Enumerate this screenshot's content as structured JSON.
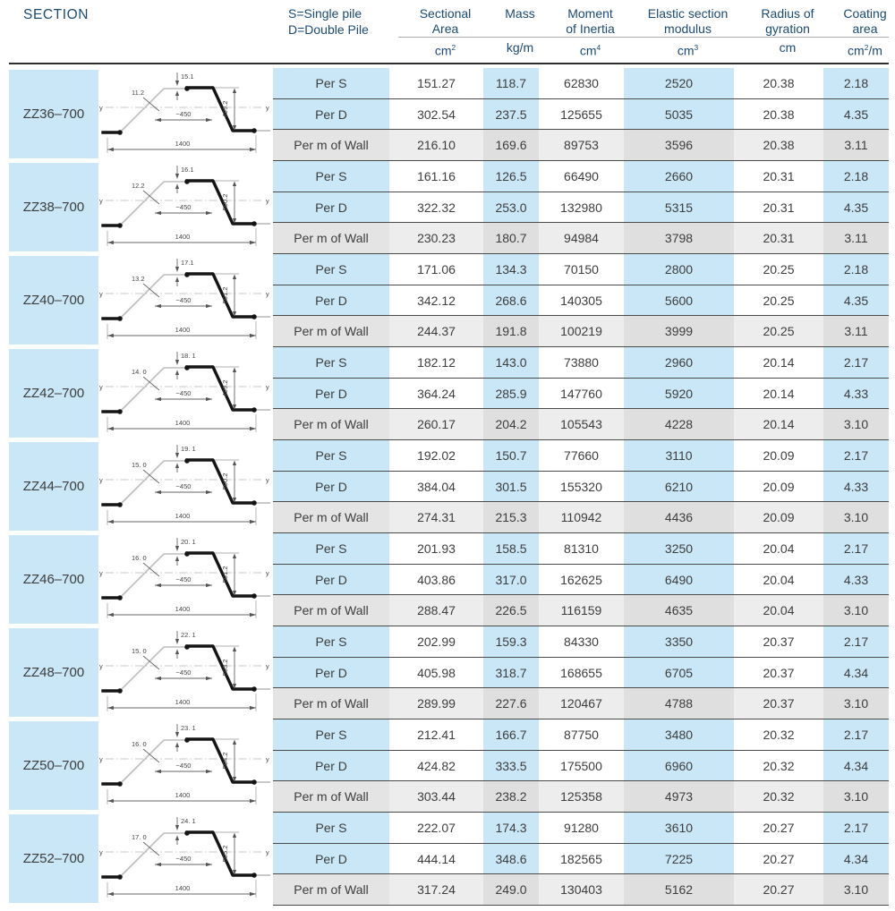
{
  "header": {
    "section_label": "SECTION",
    "pile_type_line1": "S=Single pile",
    "pile_type_line2": "D=Double Pile",
    "columns": [
      {
        "title_lines": [
          "Sectional",
          "Area"
        ],
        "unit_pre": "cm",
        "unit_sup": "2",
        "unit_post": ""
      },
      {
        "title_lines": [
          "Mass"
        ],
        "unit_pre": "kg/m",
        "unit_sup": "",
        "unit_post": ""
      },
      {
        "title_lines": [
          "Moment",
          "of Inertia"
        ],
        "unit_pre": "cm",
        "unit_sup": "4",
        "unit_post": ""
      },
      {
        "title_lines": [
          "Elastic section",
          "modulus"
        ],
        "unit_pre": "cm",
        "unit_sup": "3",
        "unit_post": ""
      },
      {
        "title_lines": [
          "Radius of",
          "gyration"
        ],
        "unit_pre": "cm",
        "unit_sup": "",
        "unit_post": ""
      },
      {
        "title_lines": [
          "Coating",
          "area"
        ],
        "unit_pre": "cm",
        "unit_sup": "2",
        "unit_post": "/m"
      }
    ]
  },
  "row_labels": [
    "Per S",
    "Per D",
    "Per m of Wall"
  ],
  "diagram": {
    "axis_label": "y"
  },
  "colors": {
    "accent_blue": "#c9e7f6",
    "header_text": "#1b4a72",
    "per_m_gray_light": "#ededed",
    "per_m_gray_dark": "#dfdfdf",
    "per_m_label_gray": "#e4e4e4"
  },
  "sections": [
    {
      "name": "ZZ36–700",
      "dims": {
        "flange_thickness": "15.1",
        "web_thickness": "11.2",
        "top_width": "~450",
        "height": "499.2",
        "total_width": "1400"
      },
      "rows": [
        [
          "151.27",
          "118.7",
          "62830",
          "2520",
          "20.38",
          "2.18"
        ],
        [
          "302.54",
          "237.5",
          "125655",
          "5035",
          "20.38",
          "4.35"
        ],
        [
          "216.10",
          "169.6",
          "89753",
          "3596",
          "20.38",
          "3.11"
        ]
      ]
    },
    {
      "name": "ZZ38–700",
      "dims": {
        "flange_thickness": "16.1",
        "web_thickness": "12.2",
        "top_width": "~450",
        "height": "500.2",
        "total_width": "1400"
      },
      "rows": [
        [
          "161.16",
          "126.5",
          "66490",
          "2660",
          "20.31",
          "2.18"
        ],
        [
          "322.32",
          "253.0",
          "132980",
          "5315",
          "20.31",
          "4.35"
        ],
        [
          "230.23",
          "180.7",
          "94984",
          "3798",
          "20.31",
          "3.11"
        ]
      ]
    },
    {
      "name": "ZZ40–700",
      "dims": {
        "flange_thickness": "17.1",
        "web_thickness": "13.2",
        "top_width": "~450",
        "height": "501.2",
        "total_width": "1400"
      },
      "rows": [
        [
          "171.06",
          "134.3",
          "70150",
          "2800",
          "20.25",
          "2.18"
        ],
        [
          "342.12",
          "268.6",
          "140305",
          "5600",
          "20.25",
          "4.35"
        ],
        [
          "244.37",
          "191.8",
          "100219",
          "3999",
          "20.25",
          "3.11"
        ]
      ]
    },
    {
      "name": "ZZ42–700",
      "dims": {
        "flange_thickness": "18. 1",
        "web_thickness": "14. 0",
        "top_width": "~450",
        "height": "499.2",
        "total_width": "1400"
      },
      "rows": [
        [
          "182.12",
          "143.0",
          "73880",
          "2960",
          "20.14",
          "2.17"
        ],
        [
          "364.24",
          "285.9",
          "147760",
          "5920",
          "20.14",
          "4.33"
        ],
        [
          "260.17",
          "204.2",
          "105543",
          "4228",
          "20.14",
          "3.10"
        ]
      ]
    },
    {
      "name": "ZZ44–700",
      "dims": {
        "flange_thickness": "19. 1",
        "web_thickness": "15. 0",
        "top_width": "~450",
        "height": "500.2",
        "total_width": "1400"
      },
      "rows": [
        [
          "192.02",
          "150.7",
          "77660",
          "3110",
          "20.09",
          "2.17"
        ],
        [
          "384.04",
          "301.5",
          "155320",
          "6210",
          "20.09",
          "4.33"
        ],
        [
          "274.31",
          "215.3",
          "110942",
          "4436",
          "20.09",
          "3.10"
        ]
      ]
    },
    {
      "name": "ZZ46–700",
      "dims": {
        "flange_thickness": "20. 1",
        "web_thickness": "16. 0",
        "top_width": "~450",
        "height": "501.2",
        "total_width": "1400"
      },
      "rows": [
        [
          "201.93",
          "158.5",
          "81310",
          "3250",
          "20.04",
          "2.17"
        ],
        [
          "403.86",
          "317.0",
          "162625",
          "6490",
          "20.04",
          "4.33"
        ],
        [
          "288.47",
          "226.5",
          "116159",
          "4635",
          "20.04",
          "3.10"
        ]
      ]
    },
    {
      "name": "ZZ48–700",
      "dims": {
        "flange_thickness": "22. 1",
        "web_thickness": "15. 0",
        "top_width": "~450",
        "height": "503.2",
        "total_width": "1400"
      },
      "rows": [
        [
          "202.99",
          "159.3",
          "84330",
          "3350",
          "20.37",
          "2.17"
        ],
        [
          "405.98",
          "318.7",
          "168655",
          "6705",
          "20.37",
          "4.34"
        ],
        [
          "289.99",
          "227.6",
          "120467",
          "4788",
          "20.37",
          "3.10"
        ]
      ]
    },
    {
      "name": "ZZ50–700",
      "dims": {
        "flange_thickness": "23. 1",
        "web_thickness": "16. 0",
        "top_width": "~450",
        "height": "504.2",
        "total_width": "1400"
      },
      "rows": [
        [
          "212.41",
          "166.7",
          "87750",
          "3480",
          "20.32",
          "2.17"
        ],
        [
          "424.82",
          "333.5",
          "175500",
          "6960",
          "20.32",
          "4.34"
        ],
        [
          "303.44",
          "238.2",
          "125358",
          "4973",
          "20.32",
          "3.10"
        ]
      ]
    },
    {
      "name": "ZZ52–700",
      "dims": {
        "flange_thickness": "24. 1",
        "web_thickness": "17. 0",
        "top_width": "~450",
        "height": "505.2",
        "total_width": "1400"
      },
      "rows": [
        [
          "222.07",
          "174.3",
          "91280",
          "3610",
          "20.27",
          "2.17"
        ],
        [
          "444.14",
          "348.6",
          "182565",
          "7225",
          "20.27",
          "4.34"
        ],
        [
          "317.24",
          "249.0",
          "130403",
          "5162",
          "20.27",
          "3.10"
        ]
      ]
    }
  ]
}
